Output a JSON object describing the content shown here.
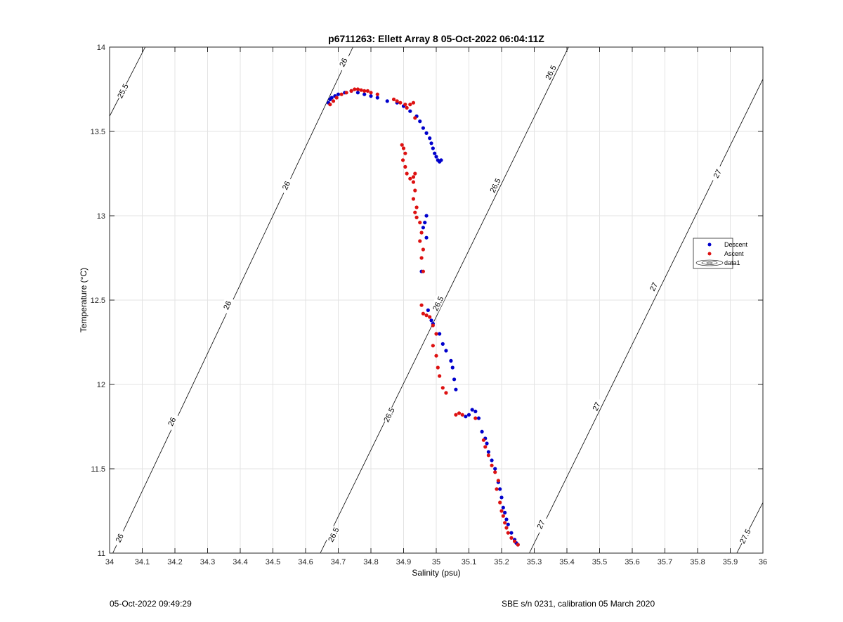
{
  "chart_data": {
    "type": "scatter",
    "title": "p6711263: Ellett Array 8 05-Oct-2022 06:04:11Z",
    "xlabel": "Salinity (psu)",
    "ylabel": "Temperature (°C)",
    "xlim": [
      34,
      36
    ],
    "ylim": [
      11,
      14
    ],
    "xticks": [
      "34",
      "34.1",
      "34.2",
      "34.3",
      "34.4",
      "34.5",
      "34.6",
      "34.7",
      "34.8",
      "34.9",
      "35",
      "35.1",
      "35.2",
      "35.3",
      "35.4",
      "35.5",
      "35.6",
      "35.7",
      "35.8",
      "35.9",
      "36"
    ],
    "yticks": [
      "11",
      "11.5",
      "12",
      "12.5",
      "13",
      "13.5",
      "14"
    ],
    "grid": true,
    "legend_position": "right",
    "legend": [
      "Descent",
      "Ascent",
      "data1"
    ],
    "series": [
      {
        "name": "Descent",
        "color": "#0000cc",
        "points": [
          [
            34.67,
            13.67
          ],
          [
            34.675,
            13.69
          ],
          [
            34.68,
            13.7
          ],
          [
            34.69,
            13.71
          ],
          [
            34.7,
            13.72
          ],
          [
            34.72,
            13.73
          ],
          [
            34.74,
            13.74
          ],
          [
            34.76,
            13.73
          ],
          [
            34.78,
            13.72
          ],
          [
            34.8,
            13.71
          ],
          [
            34.82,
            13.7
          ],
          [
            34.85,
            13.68
          ],
          [
            34.88,
            13.67
          ],
          [
            34.9,
            13.65
          ],
          [
            34.92,
            13.62
          ],
          [
            34.94,
            13.59
          ],
          [
            34.95,
            13.56
          ],
          [
            34.96,
            13.52
          ],
          [
            34.97,
            13.49
          ],
          [
            34.98,
            13.46
          ],
          [
            34.985,
            13.43
          ],
          [
            34.99,
            13.4
          ],
          [
            34.995,
            13.37
          ],
          [
            35.0,
            13.35
          ],
          [
            35.005,
            13.33
          ],
          [
            35.01,
            13.32
          ],
          [
            35.015,
            13.33
          ],
          [
            34.97,
            13.0
          ],
          [
            34.965,
            12.96
          ],
          [
            34.96,
            12.93
          ],
          [
            34.97,
            12.87
          ],
          [
            34.955,
            12.67
          ],
          [
            34.975,
            12.44
          ],
          [
            34.985,
            12.38
          ],
          [
            34.99,
            12.36
          ],
          [
            35.01,
            12.3
          ],
          [
            35.02,
            12.24
          ],
          [
            35.03,
            12.2
          ],
          [
            35.045,
            12.14
          ],
          [
            35.05,
            12.1
          ],
          [
            35.055,
            12.03
          ],
          [
            35.06,
            11.97
          ],
          [
            35.09,
            11.81
          ],
          [
            35.1,
            11.82
          ],
          [
            35.11,
            11.85
          ],
          [
            35.12,
            11.84
          ],
          [
            35.13,
            11.8
          ],
          [
            35.14,
            11.72
          ],
          [
            35.15,
            11.68
          ],
          [
            35.155,
            11.65
          ],
          [
            35.16,
            11.6
          ],
          [
            35.17,
            11.55
          ],
          [
            35.18,
            11.5
          ],
          [
            35.19,
            11.42
          ],
          [
            35.195,
            11.38
          ],
          [
            35.2,
            11.33
          ],
          [
            35.205,
            11.27
          ],
          [
            35.21,
            11.24
          ],
          [
            35.215,
            11.2
          ],
          [
            35.22,
            11.17
          ],
          [
            35.23,
            11.12
          ],
          [
            35.24,
            11.08
          ],
          [
            35.245,
            11.06
          ],
          [
            35.25,
            11.05
          ]
        ]
      },
      {
        "name": "Ascent",
        "color": "#dd1111",
        "points": [
          [
            34.675,
            13.66
          ],
          [
            34.685,
            13.68
          ],
          [
            34.695,
            13.7
          ],
          [
            34.71,
            13.72
          ],
          [
            34.725,
            13.73
          ],
          [
            34.74,
            13.74
          ],
          [
            34.75,
            13.75
          ],
          [
            34.76,
            13.75
          ],
          [
            34.77,
            13.745
          ],
          [
            34.78,
            13.74
          ],
          [
            34.79,
            13.74
          ],
          [
            34.8,
            13.73
          ],
          [
            34.82,
            13.72
          ],
          [
            34.87,
            13.69
          ],
          [
            34.88,
            13.68
          ],
          [
            34.89,
            13.67
          ],
          [
            34.905,
            13.66
          ],
          [
            34.91,
            13.64
          ],
          [
            34.92,
            13.66
          ],
          [
            34.93,
            13.67
          ],
          [
            34.935,
            13.58
          ],
          [
            34.895,
            13.42
          ],
          [
            34.9,
            13.4
          ],
          [
            34.905,
            13.37
          ],
          [
            34.898,
            13.33
          ],
          [
            34.905,
            13.29
          ],
          [
            34.91,
            13.25
          ],
          [
            34.92,
            13.22
          ],
          [
            34.93,
            13.23
          ],
          [
            34.935,
            13.25
          ],
          [
            34.93,
            13.2
          ],
          [
            34.935,
            13.15
          ],
          [
            34.93,
            13.1
          ],
          [
            34.94,
            13.05
          ],
          [
            34.935,
            13.02
          ],
          [
            34.94,
            12.99
          ],
          [
            34.95,
            12.96
          ],
          [
            34.955,
            12.9
          ],
          [
            34.95,
            12.85
          ],
          [
            34.96,
            12.8
          ],
          [
            34.955,
            12.75
          ],
          [
            34.96,
            12.67
          ],
          [
            34.955,
            12.47
          ],
          [
            34.96,
            12.42
          ],
          [
            34.97,
            12.41
          ],
          [
            34.98,
            12.4
          ],
          [
            34.99,
            12.35
          ],
          [
            35.0,
            12.3
          ],
          [
            34.99,
            12.23
          ],
          [
            35.0,
            12.17
          ],
          [
            35.005,
            12.1
          ],
          [
            35.01,
            12.05
          ],
          [
            35.02,
            11.98
          ],
          [
            35.03,
            11.95
          ],
          [
            35.07,
            11.83
          ],
          [
            35.08,
            11.82
          ],
          [
            35.06,
            11.82
          ],
          [
            35.12,
            11.8
          ],
          [
            35.145,
            11.67
          ],
          [
            35.15,
            11.63
          ],
          [
            35.16,
            11.58
          ],
          [
            35.17,
            11.52
          ],
          [
            35.18,
            11.48
          ],
          [
            35.19,
            11.43
          ],
          [
            35.185,
            11.38
          ],
          [
            35.195,
            11.3
          ],
          [
            35.2,
            11.25
          ],
          [
            35.205,
            11.22
          ],
          [
            35.21,
            11.18
          ],
          [
            35.215,
            11.15
          ],
          [
            35.22,
            11.12
          ],
          [
            35.23,
            11.09
          ],
          [
            35.24,
            11.07
          ],
          [
            35.25,
            11.05
          ]
        ]
      }
    ],
    "contours": [
      {
        "label": "25.5",
        "points": [
          [
            34.0,
            13.59
          ],
          [
            34.109,
            14.0
          ]
        ],
        "label_positions": [
          [
            34.04,
            13.74
          ]
        ]
      },
      {
        "label": "26",
        "points": [
          [
            34.0,
            10.96
          ],
          [
            34.745,
            14.0
          ]
        ],
        "label_positions": [
          [
            34.03,
            11.09
          ],
          [
            34.19,
            11.78
          ],
          [
            34.36,
            12.47
          ],
          [
            34.54,
            13.18
          ],
          [
            34.715,
            13.91
          ]
        ]
      },
      {
        "label": "26.5",
        "points": [
          [
            34.645,
            11.0
          ],
          [
            35.405,
            14.0
          ]
        ],
        "label_positions": [
          [
            34.685,
            11.11
          ],
          [
            34.855,
            11.82
          ],
          [
            35.005,
            12.48
          ],
          [
            35.18,
            13.18
          ],
          [
            35.35,
            13.85
          ]
        ]
      },
      {
        "label": "27",
        "points": [
          [
            35.285,
            11.0
          ],
          [
            36.0,
            13.81
          ]
        ],
        "label_positions": [
          [
            35.32,
            11.17
          ],
          [
            35.49,
            11.87
          ],
          [
            35.665,
            12.58
          ],
          [
            35.86,
            13.25
          ]
        ]
      },
      {
        "label": "27.5",
        "points": [
          [
            35.92,
            11.0
          ],
          [
            36.0,
            11.3
          ]
        ],
        "label_positions": [
          [
            35.945,
            11.1
          ]
        ]
      }
    ]
  },
  "footer": {
    "left": "05-Oct-2022 09:49:29",
    "right": "SBE s/n 0231, calibration 05 March 2020"
  }
}
